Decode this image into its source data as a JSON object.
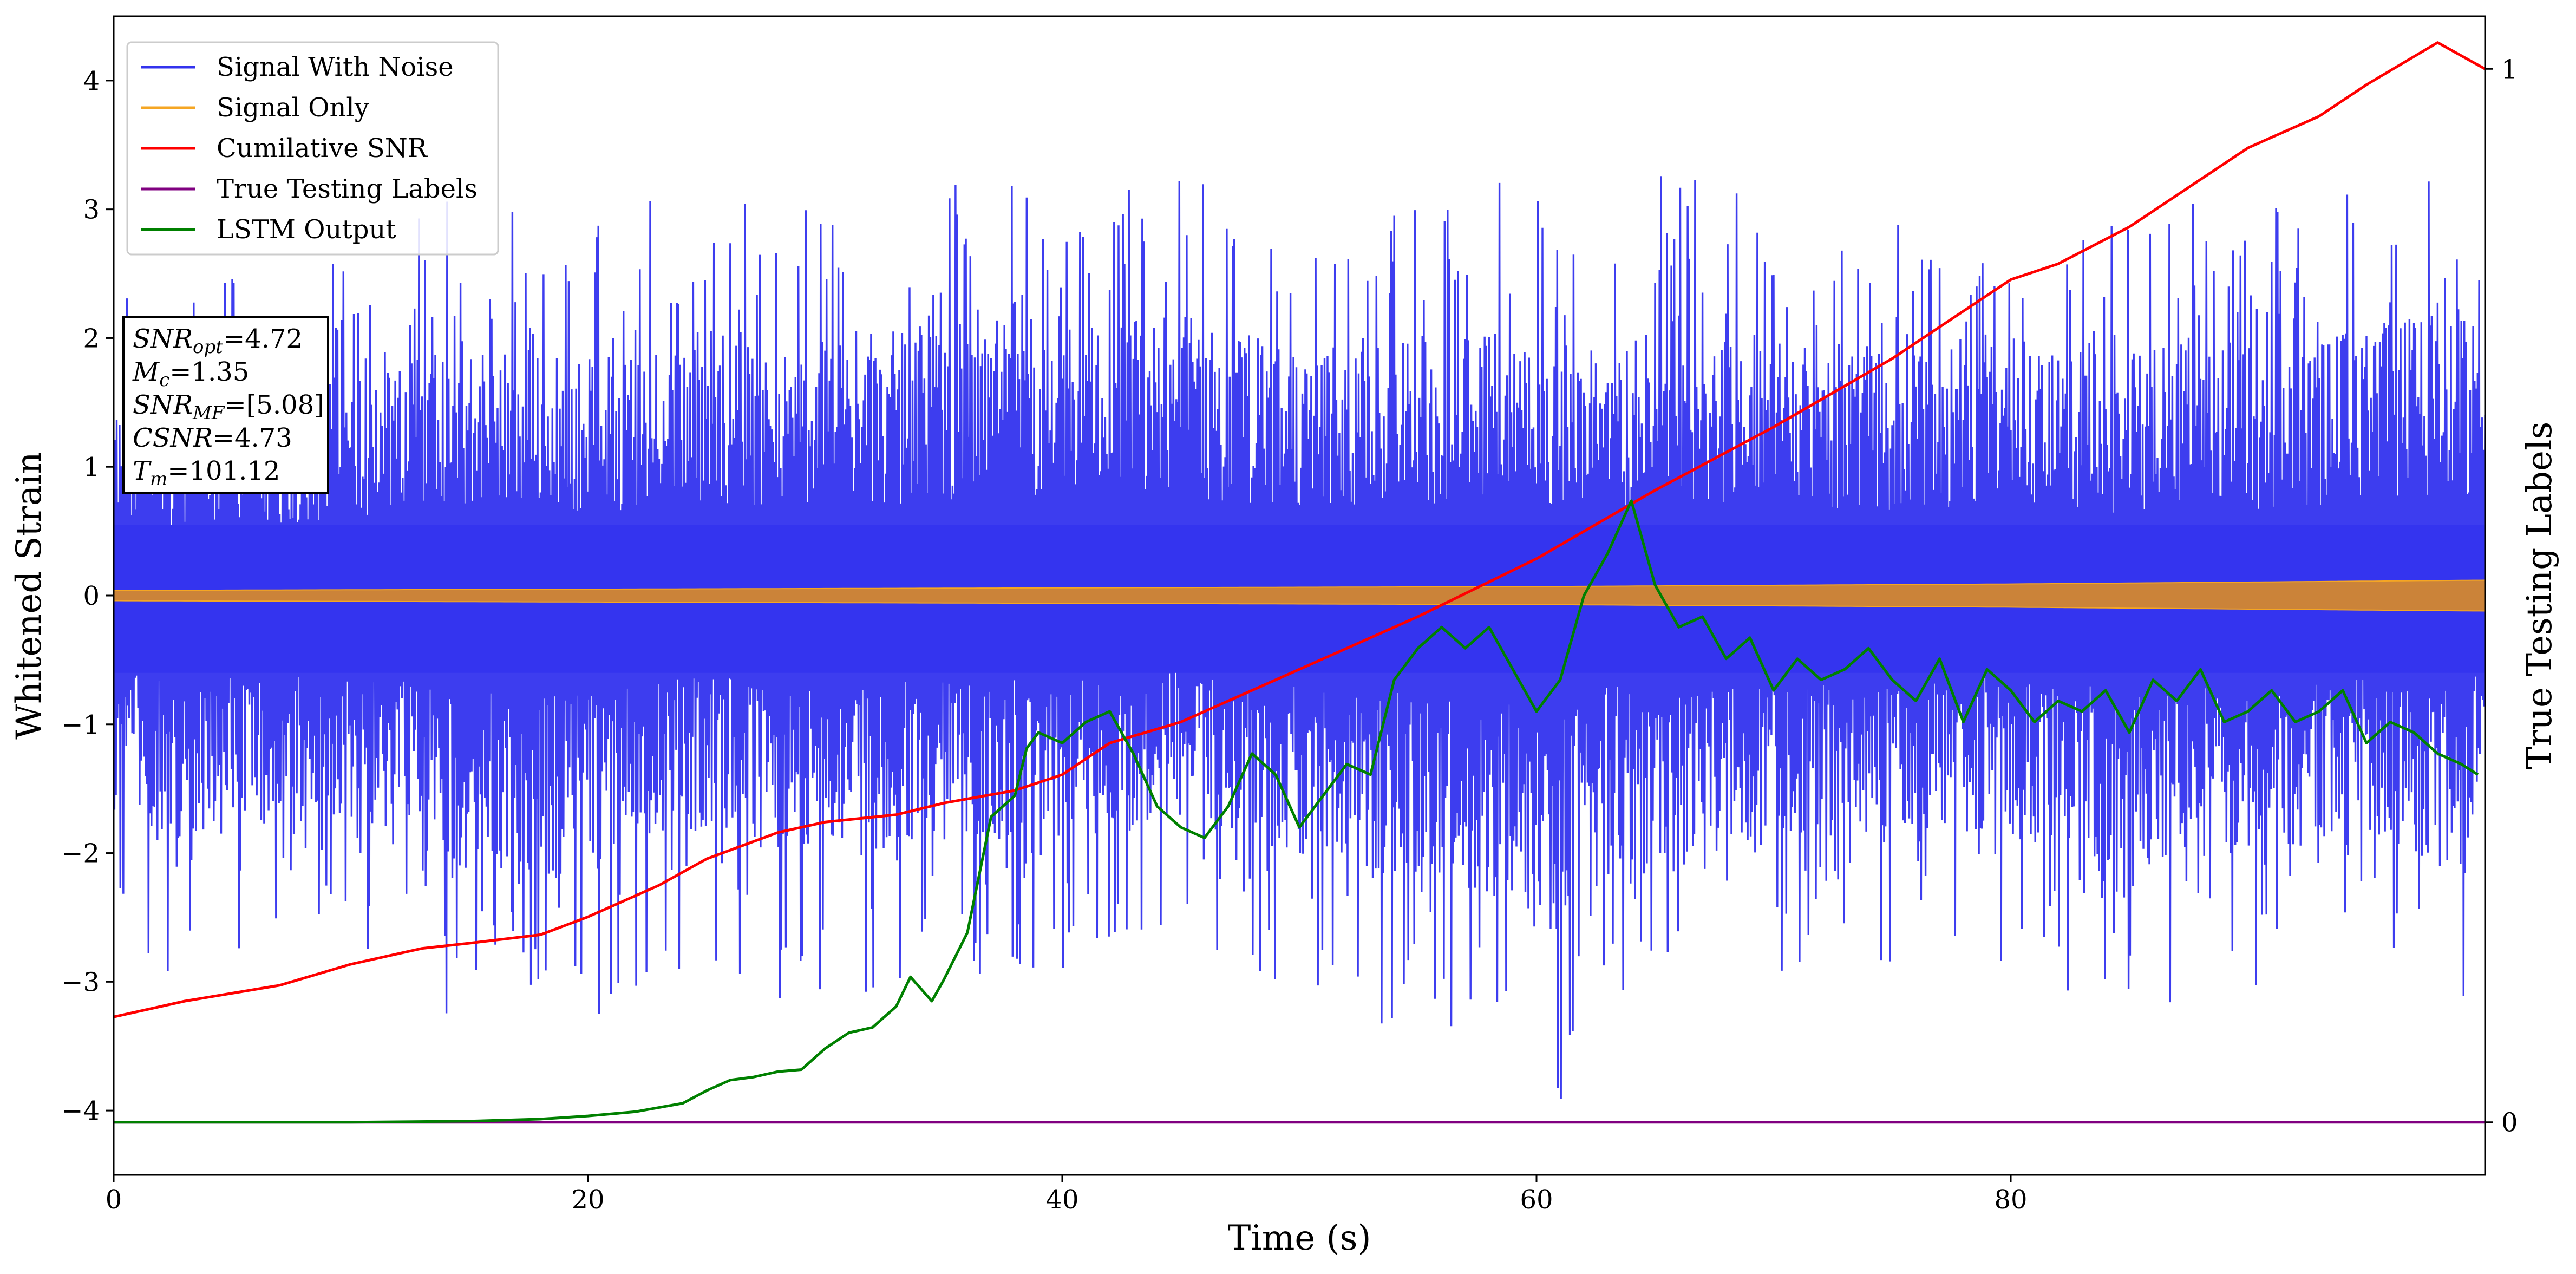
{
  "chart_data": {
    "type": "line",
    "xlabel": "Time (s)",
    "ylabel": "Whitened Strain",
    "y2label": "True Testing Labels",
    "xlim": [
      0,
      100
    ],
    "ylim": [
      -4.5,
      4.5
    ],
    "y2lim": [
      -0.05,
      1.05
    ],
    "x_ticks": [
      0,
      20,
      40,
      60,
      80
    ],
    "y_ticks": [
      -4,
      -3,
      -2,
      -1,
      0,
      1,
      2,
      3,
      4
    ],
    "y2_ticks": [
      0,
      1
    ],
    "legend_position": "top-left",
    "annotation": [
      {
        "name": "SNR",
        "sub": "opt",
        "value": "=4.72"
      },
      {
        "name": "M",
        "sub": "c",
        "value": "=1.35"
      },
      {
        "name": "SNR",
        "sub": "MF",
        "value": "=[5.08]"
      },
      {
        "name": "CSNR",
        "sub": "",
        "value": "=4.73"
      },
      {
        "name": "T",
        "sub": "m",
        "value": "=101.12"
      }
    ],
    "series": [
      {
        "name": "Signal With Noise",
        "color": "#3333ee",
        "axis": "left",
        "kind": "noise",
        "upper_env": [
          [
            0,
            2.4
          ],
          [
            10,
            2.6
          ],
          [
            13,
            3.1
          ],
          [
            20,
            2.9
          ],
          [
            25,
            3.3
          ],
          [
            28,
            3.0
          ],
          [
            37,
            3.4
          ],
          [
            40,
            3.1
          ],
          [
            44,
            3.5
          ],
          [
            50,
            3.0
          ],
          [
            56,
            3.1
          ],
          [
            60,
            3.3
          ],
          [
            63,
            2.9
          ],
          [
            66,
            3.4
          ],
          [
            69,
            3.2
          ],
          [
            75,
            3.0
          ],
          [
            80,
            3.2
          ],
          [
            84,
            2.9
          ],
          [
            88,
            3.2
          ],
          [
            91,
            3.0
          ],
          [
            95,
            3.3
          ],
          [
            99,
            3.5
          ],
          [
            100,
            2.5
          ]
        ],
        "lower_env": [
          [
            0,
            -2.6
          ],
          [
            2,
            -3.0
          ],
          [
            10,
            -2.7
          ],
          [
            14,
            -3.3
          ],
          [
            18,
            -3.6
          ],
          [
            25,
            -2.8
          ],
          [
            29,
            -3.3
          ],
          [
            35,
            -2.9
          ],
          [
            39,
            -3.0
          ],
          [
            45,
            -2.7
          ],
          [
            48,
            -3.1
          ],
          [
            56,
            -3.5
          ],
          [
            61,
            -4.1
          ],
          [
            62,
            -2.9
          ],
          [
            65,
            -3.4
          ],
          [
            72,
            -2.9
          ],
          [
            78,
            -2.8
          ],
          [
            85,
            -3.3
          ],
          [
            90,
            -3.1
          ],
          [
            95,
            -2.9
          ],
          [
            99,
            -3.4
          ],
          [
            100,
            -2.0
          ]
        ]
      },
      {
        "name": "Signal Only",
        "color": "#f5a623",
        "axis": "left",
        "kind": "band",
        "amplitude": [
          [
            0,
            0.04
          ],
          [
            20,
            0.05
          ],
          [
            40,
            0.06
          ],
          [
            60,
            0.07
          ],
          [
            80,
            0.09
          ],
          [
            100,
            0.12
          ]
        ]
      },
      {
        "name": "Cumilative SNR",
        "color": "#ff0000",
        "axis": "right",
        "x": [
          0,
          3,
          7,
          10,
          13,
          15,
          18,
          20,
          23,
          25,
          28,
          30,
          33,
          35,
          38,
          40,
          42,
          45,
          50,
          55,
          60,
          65,
          70,
          75,
          78,
          80,
          82,
          85,
          88,
          90,
          93,
          95,
          98,
          100
        ],
        "y": [
          0.1,
          0.115,
          0.13,
          0.15,
          0.165,
          0.17,
          0.178,
          0.195,
          0.225,
          0.25,
          0.275,
          0.285,
          0.292,
          0.303,
          0.315,
          0.33,
          0.36,
          0.38,
          0.43,
          0.48,
          0.535,
          0.6,
          0.66,
          0.725,
          0.77,
          0.8,
          0.815,
          0.85,
          0.895,
          0.925,
          0.955,
          0.985,
          1.025,
          1.0
        ]
      },
      {
        "name": "True Testing Labels",
        "color": "#800080",
        "axis": "right",
        "x": [
          0,
          100
        ],
        "y": [
          0.0,
          0.0
        ]
      },
      {
        "name": "LSTM Output",
        "color": "#008000",
        "axis": "right",
        "x": [
          0,
          10,
          15,
          18,
          20,
          22,
          24,
          25,
          26,
          27,
          28,
          29,
          30,
          31,
          32,
          33,
          33.6,
          34.5,
          35,
          36,
          37,
          37.5,
          38,
          38.5,
          39,
          40,
          41,
          42,
          43,
          44,
          45,
          46,
          47,
          48,
          49,
          50,
          51,
          52,
          53,
          54,
          55,
          56,
          57,
          58,
          59,
          60,
          61,
          62,
          63,
          64,
          65,
          66,
          67,
          68,
          69,
          70,
          71,
          72,
          73,
          74,
          75,
          76,
          77,
          78,
          79,
          80,
          81,
          82,
          83,
          84,
          85,
          86,
          87,
          88,
          89,
          90,
          91,
          92,
          93,
          94,
          95,
          96,
          97,
          98,
          99,
          99.7
        ],
        "y": [
          0.0,
          0.0,
          0.001,
          0.003,
          0.006,
          0.01,
          0.018,
          0.03,
          0.04,
          0.043,
          0.048,
          0.05,
          0.07,
          0.085,
          0.09,
          0.11,
          0.138,
          0.115,
          0.135,
          0.18,
          0.29,
          0.3,
          0.31,
          0.355,
          0.37,
          0.36,
          0.38,
          0.39,
          0.35,
          0.3,
          0.28,
          0.27,
          0.3,
          0.35,
          0.33,
          0.28,
          0.31,
          0.34,
          0.33,
          0.42,
          0.45,
          0.47,
          0.45,
          0.47,
          0.43,
          0.39,
          0.42,
          0.5,
          0.54,
          0.59,
          0.51,
          0.47,
          0.48,
          0.44,
          0.46,
          0.41,
          0.44,
          0.42,
          0.43,
          0.45,
          0.42,
          0.4,
          0.44,
          0.38,
          0.43,
          0.41,
          0.38,
          0.4,
          0.39,
          0.41,
          0.37,
          0.42,
          0.4,
          0.43,
          0.38,
          0.39,
          0.41,
          0.38,
          0.39,
          0.41,
          0.36,
          0.38,
          0.37,
          0.35,
          0.34,
          0.33
        ]
      }
    ]
  }
}
